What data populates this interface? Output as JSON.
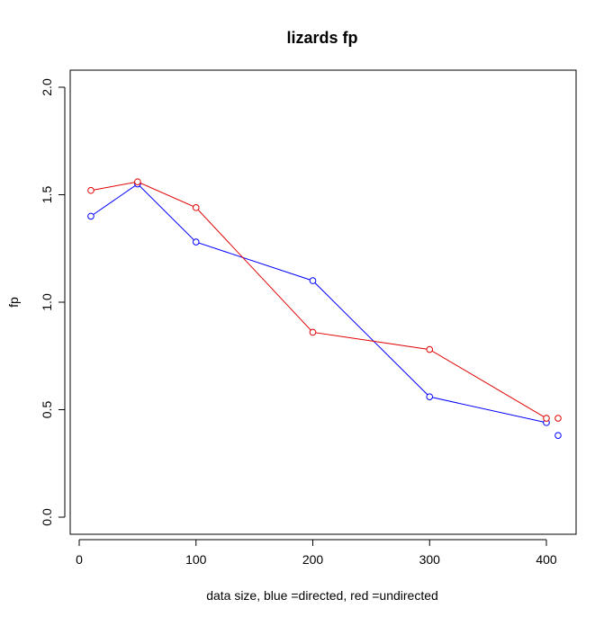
{
  "chart_data": {
    "type": "line",
    "title": "lizards fp",
    "xlabel": "data size,  blue =directed,  red =undirected",
    "ylabel": "fp",
    "xlim": [
      0,
      410
    ],
    "ylim": [
      0,
      2.0
    ],
    "x_ticks": [
      0,
      100,
      200,
      300,
      400
    ],
    "y_ticks": [
      0.0,
      0.5,
      1.0,
      1.5,
      2.0
    ],
    "x_tick_labels": [
      "0",
      "100",
      "200",
      "300",
      "400"
    ],
    "y_tick_labels": [
      "0.0",
      "0.5",
      "1.0",
      "1.5",
      "2.0"
    ],
    "grid": false,
    "series": [
      {
        "color": "#0000ff",
        "x": [
          10,
          50,
          100,
          200,
          300,
          400,
          410
        ],
        "y": [
          1.4,
          1.55,
          1.28,
          1.1,
          0.56,
          0.44,
          0.38
        ],
        "line_x": [
          10,
          50,
          100,
          200,
          300,
          400
        ],
        "line_y": [
          1.4,
          1.55,
          1.28,
          1.1,
          0.56,
          0.44
        ]
      },
      {
        "color": "#e00000",
        "x": [
          10,
          50,
          100,
          200,
          300,
          400,
          410
        ],
        "y": [
          1.52,
          1.56,
          1.44,
          0.86,
          0.78,
          0.46,
          0.46
        ],
        "line_x": [
          10,
          50,
          100,
          200,
          300,
          400
        ],
        "line_y": [
          1.52,
          1.56,
          1.44,
          0.86,
          0.78,
          0.46
        ]
      }
    ]
  }
}
